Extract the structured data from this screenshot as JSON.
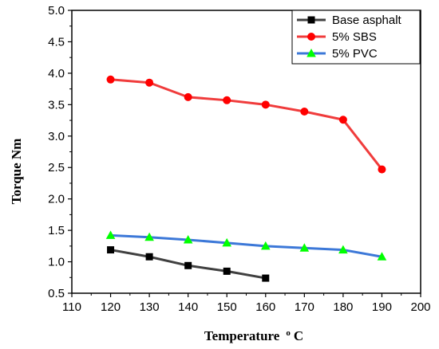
{
  "chart_data": {
    "type": "line",
    "xlabel": "Temperature",
    "xlabel_sup": "o",
    "xlabel_unit": "C",
    "ylabel": "Torque Nm",
    "xlim": [
      110,
      200
    ],
    "ylim": [
      0.5,
      5.0
    ],
    "x_ticks": [
      110,
      120,
      130,
      140,
      150,
      160,
      170,
      180,
      190,
      200
    ],
    "y_ticks": [
      "0.5",
      "1.0",
      "1.5",
      "2.0",
      "2.5",
      "3.0",
      "3.5",
      "4.0",
      "4.5",
      "5.0"
    ],
    "grid": false,
    "legend_position": "top-right",
    "series": [
      {
        "name": "Base asphalt",
        "color": "#404040",
        "marker_color": "#000000",
        "marker": "square",
        "x": [
          120,
          130,
          140,
          150,
          160
        ],
        "y": [
          1.19,
          1.08,
          0.94,
          0.85,
          0.74
        ]
      },
      {
        "name": "5% SBS",
        "color": "#f03c3c",
        "marker_color": "#ff0000",
        "marker": "circle",
        "x": [
          120,
          130,
          140,
          150,
          160,
          170,
          180,
          190
        ],
        "y": [
          3.9,
          3.85,
          3.62,
          3.57,
          3.5,
          3.39,
          3.26,
          2.47
        ]
      },
      {
        "name": "5% PVC",
        "color": "#3c78d8",
        "marker_color": "#00ff00",
        "marker": "triangle",
        "x": [
          120,
          130,
          140,
          150,
          160,
          170,
          180,
          190
        ],
        "y": [
          1.42,
          1.39,
          1.35,
          1.3,
          1.25,
          1.22,
          1.19,
          1.08
        ]
      }
    ]
  }
}
